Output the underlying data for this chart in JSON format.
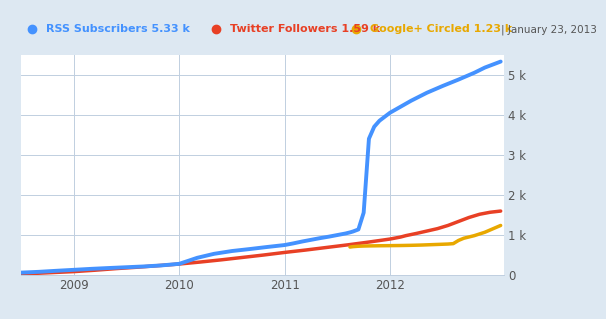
{
  "legend_items": [
    {
      "label": "RSS Subscribers 5.33 k",
      "color": "#4492ff"
    },
    {
      "label": "Twitter Followers 1.59 k",
      "color": "#e84025"
    },
    {
      "label": "Google+ Circled 1.23 k",
      "color": "#e8a800"
    }
  ],
  "header_bg": "#d8e4f0",
  "plot_bg": "#ffffff",
  "fig_bg": "#dde8f2",
  "grid_color": "#c0cfe0",
  "date_label": "January 23, 2013",
  "rss_x": [
    2008.5,
    2008.67,
    2008.83,
    2009.0,
    2009.17,
    2009.33,
    2009.5,
    2009.67,
    2009.83,
    2010.0,
    2010.08,
    2010.17,
    2010.33,
    2010.5,
    2010.67,
    2010.83,
    2011.0,
    2011.08,
    2011.17,
    2011.25,
    2011.33,
    2011.42,
    2011.5,
    2011.58,
    2011.625,
    2011.65,
    2011.67,
    2011.7,
    2011.75,
    2011.8,
    2011.85,
    2011.9,
    2011.95,
    2012.0,
    2012.1,
    2012.2,
    2012.35,
    2012.5,
    2012.65,
    2012.8,
    2012.9,
    2013.05
  ],
  "rss_y": [
    50,
    70,
    95,
    120,
    145,
    165,
    185,
    205,
    230,
    270,
    340,
    420,
    520,
    590,
    640,
    690,
    740,
    780,
    830,
    870,
    910,
    950,
    990,
    1030,
    1060,
    1080,
    1100,
    1130,
    1550,
    3400,
    3700,
    3850,
    3950,
    4050,
    4200,
    4350,
    4550,
    4720,
    4880,
    5050,
    5180,
    5330
  ],
  "rss_color": "#4492ff",
  "twitter_x": [
    2008.5,
    2008.67,
    2008.83,
    2009.0,
    2009.2,
    2009.4,
    2009.6,
    2009.8,
    2010.0,
    2010.2,
    2010.4,
    2010.6,
    2010.8,
    2011.0,
    2011.2,
    2011.4,
    2011.6,
    2011.8,
    2012.0,
    2012.1,
    2012.15,
    2012.25,
    2012.35,
    2012.45,
    2012.55,
    2012.65,
    2012.75,
    2012.85,
    2012.95,
    2013.05
  ],
  "twitter_y": [
    20,
    35,
    55,
    75,
    110,
    150,
    185,
    225,
    265,
    315,
    370,
    430,
    490,
    555,
    615,
    680,
    745,
    815,
    890,
    940,
    975,
    1030,
    1090,
    1150,
    1230,
    1330,
    1430,
    1510,
    1560,
    1590
  ],
  "twitter_color": "#e84025",
  "gplus_x": [
    2011.62,
    2011.65,
    2011.7,
    2011.75,
    2011.8,
    2011.9,
    2012.0,
    2012.1,
    2012.2,
    2012.3,
    2012.4,
    2012.5,
    2012.55,
    2012.6,
    2012.65,
    2012.7,
    2012.8,
    2012.9,
    2013.05
  ],
  "gplus_y": [
    690,
    700,
    710,
    715,
    718,
    722,
    725,
    728,
    733,
    740,
    750,
    760,
    765,
    775,
    855,
    910,
    975,
    1060,
    1230
  ],
  "gplus_color": "#e8a800",
  "xlim": [
    2008.5,
    2013.08
  ],
  "ylim": [
    0,
    5500
  ],
  "xtick_positions": [
    2009.0,
    2010.0,
    2011.0,
    2012.0
  ],
  "xtick_labels": [
    "2009",
    "2010",
    "2011",
    "2012"
  ],
  "ytick_positions": [
    0,
    1000,
    2000,
    3000,
    4000,
    5000
  ],
  "ytick_labels": [
    "0",
    "1 k",
    "2 k",
    "3 k",
    "4 k",
    "5 k"
  ]
}
